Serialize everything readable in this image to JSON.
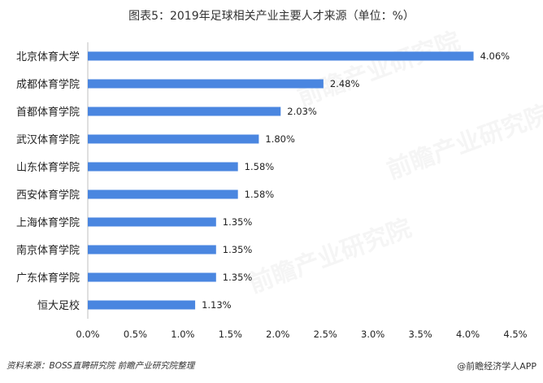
{
  "chart_data": {
    "type": "bar",
    "orientation": "horizontal",
    "title": "图表5：2019年足球相关产业主要人才来源（单位：%）",
    "categories": [
      "北京体育大学",
      "成都体育学院",
      "首都体育学院",
      "武汉体育学院",
      "山东体育学院",
      "西安体育学院",
      "上海体育学院",
      "南京体育学院",
      "广东体育学院",
      "恒大足校"
    ],
    "values": [
      4.06,
      2.48,
      2.03,
      1.8,
      1.58,
      1.58,
      1.35,
      1.35,
      1.35,
      1.13
    ],
    "value_labels": [
      "4.06%",
      "2.48%",
      "2.03%",
      "1.80%",
      "1.58%",
      "1.58%",
      "1.35%",
      "1.35%",
      "1.35%",
      "1.13%"
    ],
    "x_ticks": [
      "0.0%",
      "0.5%",
      "1.0%",
      "1.5%",
      "2.0%",
      "2.5%",
      "3.0%",
      "3.5%",
      "4.0%",
      "4.5%"
    ],
    "xlim": [
      0,
      4.5
    ],
    "xlabel": "",
    "ylabel": "",
    "grid": false,
    "legend": "none",
    "bar_color": "#4a86e0"
  },
  "footer": {
    "source": "资料来源：BOSS直聘研究院 前瞻产业研究院整理",
    "brand": "@前瞻经济学人APP"
  },
  "watermark": {
    "text": "前瞻产业研究院"
  }
}
